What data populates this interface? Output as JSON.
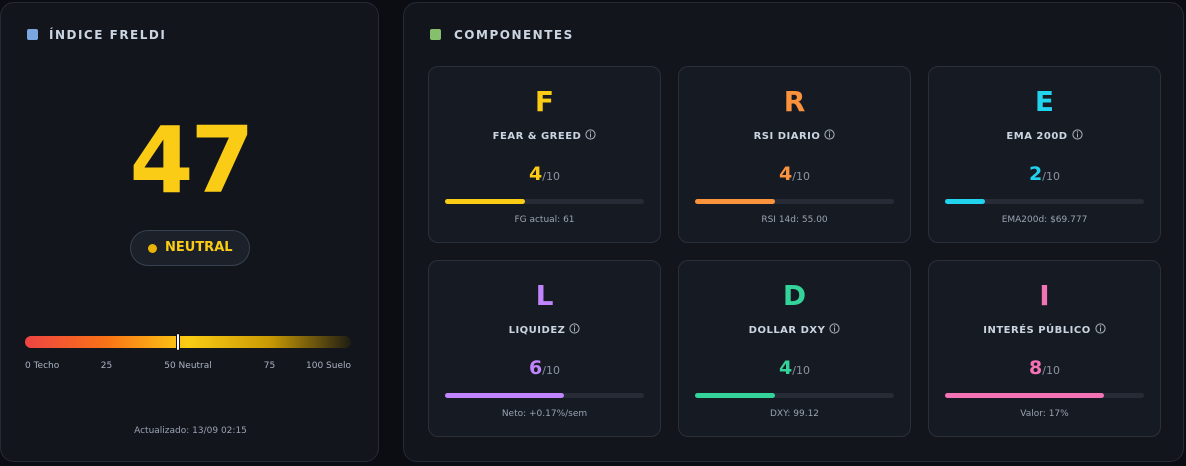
{
  "index": {
    "title": "ÍNDICE FRELDI",
    "value": 47,
    "status": "NEUTRAL",
    "updated": "Actualizado: 13/09 02:15",
    "gauge": {
      "lim": [
        0,
        100
      ],
      "ticks": [
        {
          "value": 0,
          "label": "0 Techo"
        },
        25,
        {
          "value": 50,
          "label": "50 Neutral"
        },
        75,
        {
          "value": 100,
          "label": "100 Suelo"
        }
      ]
    }
  },
  "components": {
    "title": "COMPONENTES",
    "scale": {
      "max": 10,
      "label": "/10"
    },
    "items": [
      {
        "letter": "F",
        "name": "FEAR & GREED",
        "score": 4,
        "detail": "FG actual: 61",
        "color": "#facc15"
      },
      {
        "letter": "R",
        "name": "RSI DIARIO",
        "score": 4,
        "detail": "RSI 14d: 55.00",
        "color": "#fb923c"
      },
      {
        "letter": "E",
        "name": "EMA 200D",
        "score": 2,
        "detail": "EMA200d: $69.777",
        "color": "#22d3ee"
      },
      {
        "letter": "L",
        "name": "LIQUIDEZ",
        "score": 6,
        "detail": "Neto: +0.17%/sem",
        "color": "#c084fc"
      },
      {
        "letter": "D",
        "name": "DOLLAR DXY",
        "score": 4,
        "detail": "DXY: 99.12",
        "color": "#34d399"
      },
      {
        "letter": "I",
        "name": "INTERÉS PÚBLICO",
        "score": 8,
        "detail": "Valor: 17%",
        "color": "#f472b6"
      }
    ]
  }
}
